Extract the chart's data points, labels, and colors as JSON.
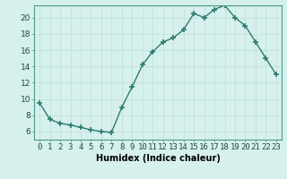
{
  "x": [
    0,
    1,
    2,
    3,
    4,
    5,
    6,
    7,
    8,
    9,
    10,
    11,
    12,
    13,
    14,
    15,
    16,
    17,
    18,
    19,
    20,
    21,
    22,
    23
  ],
  "y": [
    9.5,
    7.5,
    7.0,
    6.8,
    6.5,
    6.2,
    6.0,
    5.9,
    9.0,
    11.5,
    14.2,
    15.8,
    17.0,
    17.5,
    18.5,
    20.5,
    20.0,
    21.0,
    21.5,
    20.0,
    19.0,
    17.0,
    15.0,
    13.0
  ],
  "line_color": "#2e7d6e",
  "marker": "+",
  "markersize": 4,
  "markeredgewidth": 1.2,
  "linewidth": 1.0,
  "bg_color": "#d6f0ee",
  "grid_color": "#c0dcd8",
  "xlabel": "Humidex (Indice chaleur)",
  "xlim": [
    -0.5,
    23.5
  ],
  "ylim": [
    5.0,
    21.5
  ],
  "yticks": [
    6,
    8,
    10,
    12,
    14,
    16,
    18,
    20
  ],
  "xticks": [
    0,
    1,
    2,
    3,
    4,
    5,
    6,
    7,
    8,
    9,
    10,
    11,
    12,
    13,
    14,
    15,
    16,
    17,
    18,
    19,
    20,
    21,
    22,
    23
  ],
  "xtick_labels": [
    "0",
    "1",
    "2",
    "3",
    "4",
    "5",
    "6",
    "7",
    "8",
    "9",
    "10",
    "11",
    "12",
    "13",
    "14",
    "15",
    "16",
    "17",
    "18",
    "19",
    "20",
    "21",
    "22",
    "23"
  ],
  "ytick_labels": [
    "6",
    "8",
    "10",
    "12",
    "14",
    "16",
    "18",
    "20"
  ],
  "xlabel_fontsize": 7,
  "tick_fontsize": 6.5
}
